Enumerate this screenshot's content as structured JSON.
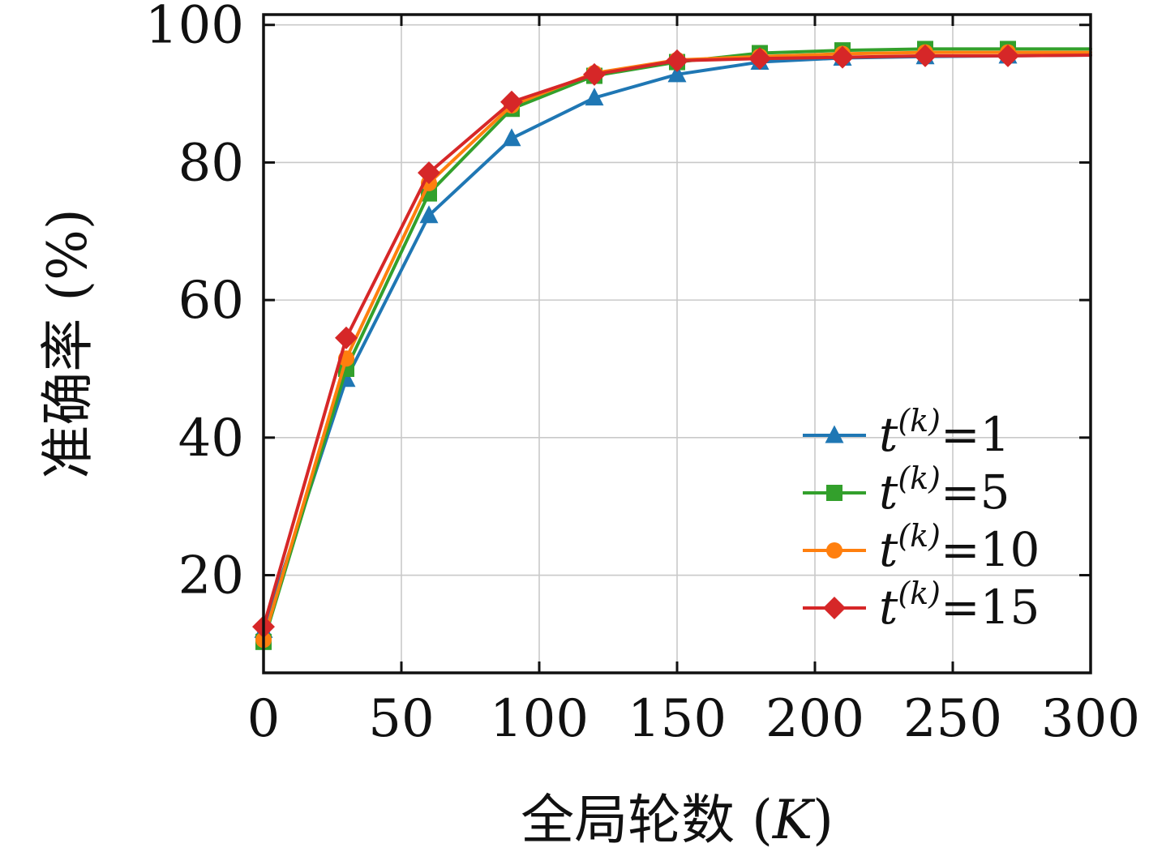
{
  "chart_data": {
    "type": "line",
    "title": "",
    "xlabel": "全局轮数 (K)",
    "xlabel_prefix": "全局轮数 (",
    "xlabel_var": "K",
    "xlabel_suffix": ")",
    "ylabel": "准确率 (%)",
    "xlim": [
      0,
      300
    ],
    "ylim": [
      5.8,
      101.5
    ],
    "xticks": [
      0,
      50,
      100,
      150,
      200,
      250,
      300
    ],
    "yticks": [
      20,
      40,
      60,
      80,
      100
    ],
    "grid": true,
    "legend_position": "lower right",
    "axis_color": "#111111",
    "grid_color": "#c9c9c9",
    "x": [
      0,
      30,
      60,
      90,
      120,
      150,
      180,
      210,
      240,
      270
    ],
    "x_end": 300,
    "series": [
      {
        "name": "t^(k)=1",
        "label_var": "t",
        "label_sup": "(k)",
        "label_eq": "=1",
        "color": "#1f77b4",
        "marker": "triangle",
        "values": [
          12.0,
          48.5,
          72.3,
          83.5,
          89.4,
          92.8,
          94.6,
          95.2,
          95.4,
          95.5
        ],
        "end_value": 95.6
      },
      {
        "name": "t^(k)=5",
        "label_var": "t",
        "label_sup": "(k)",
        "label_eq": "=5",
        "color": "#33a02c",
        "marker": "square",
        "values": [
          10.3,
          50.0,
          75.5,
          87.8,
          92.6,
          94.6,
          95.9,
          96.3,
          96.5,
          96.5
        ],
        "end_value": 96.5
      },
      {
        "name": "t^(k)=10",
        "label_var": "t",
        "label_sup": "(k)",
        "label_eq": "=10",
        "color": "#ff7f0e",
        "marker": "circle",
        "values": [
          10.6,
          51.5,
          77.0,
          88.3,
          93.0,
          94.9,
          95.4,
          95.8,
          96.0,
          96.0
        ],
        "end_value": 96.0
      },
      {
        "name": "t^(k)=15",
        "label_var": "t",
        "label_sup": "(k)",
        "label_eq": "=15",
        "color": "#d62728",
        "marker": "diamond",
        "values": [
          12.5,
          54.5,
          78.5,
          88.8,
          92.8,
          94.8,
          95.1,
          95.3,
          95.5,
          95.5
        ],
        "end_value": 95.6
      }
    ]
  }
}
